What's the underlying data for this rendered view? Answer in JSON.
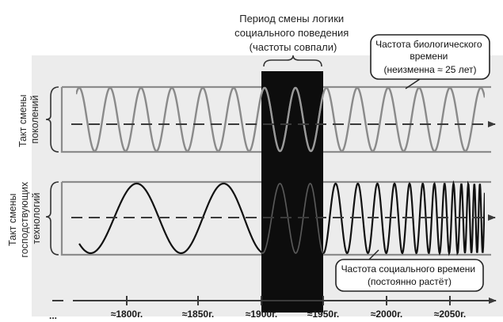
{
  "title": {
    "lines": [
      "Период смены логики",
      "социального поведения",
      "(частоты совпали)"
    ]
  },
  "bio_note": {
    "lines": [
      "Частота биологического",
      "времени",
      "(неизменна ≈ 25 лет)"
    ]
  },
  "social_note": {
    "lines": [
      "Частота социального времени",
      "(постоянно растёт)"
    ]
  },
  "row_top_label": {
    "lines": [
      "Такт смены",
      "поколений"
    ]
  },
  "row_bottom_label": {
    "lines": [
      "Такт смены",
      "господствующих",
      "технологий"
    ]
  },
  "timeline": {
    "ticks": [
      "≈1800г.",
      "≈1850г.",
      "≈1900г.",
      "≈1950г.",
      "≈2000г.",
      "≈2050г."
    ],
    "left_ellipsis": "..."
  },
  "colors": {
    "bio_wave": "#8a8a8a",
    "social_wave": "#111111",
    "band": "#0d0d0d",
    "frame": "#8c8c8c",
    "axis": "#3a3a3a",
    "background": "#e9e9e9"
  }
}
